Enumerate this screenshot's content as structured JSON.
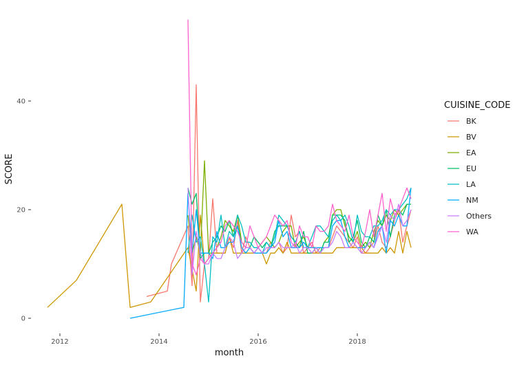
{
  "chart_data": {
    "type": "line",
    "xlabel": "month",
    "ylabel": "SCORE",
    "x_ticks": [
      "2012",
      "2014",
      "2016",
      "2018"
    ],
    "y_ticks": [
      "0",
      "20",
      "40"
    ],
    "xlim": [
      "2011-10",
      "2019-02"
    ],
    "ylim": [
      0,
      55
    ],
    "grid": false,
    "legend": {
      "title": "CUISINE_CODE",
      "position": "right"
    },
    "x": [
      "2014-08",
      "2014-09",
      "2014-10",
      "2014-11",
      "2014-12",
      "2015-01",
      "2015-02",
      "2015-03",
      "2015-04",
      "2015-05",
      "2015-06",
      "2015-07",
      "2015-08",
      "2015-09",
      "2015-10",
      "2015-11",
      "2015-12",
      "2016-01",
      "2016-02",
      "2016-03",
      "2016-04",
      "2016-05",
      "2016-06",
      "2016-07",
      "2016-08",
      "2016-09",
      "2016-10",
      "2016-11",
      "2016-12",
      "2017-01",
      "2017-02",
      "2017-03",
      "2017-04",
      "2017-05",
      "2017-06",
      "2017-07",
      "2017-08",
      "2017-09",
      "2017-10",
      "2017-11",
      "2017-12",
      "2018-01",
      "2018-02",
      "2018-03",
      "2018-04",
      "2018-05",
      "2018-06",
      "2018-07",
      "2018-08",
      "2018-09",
      "2018-10",
      "2018-11",
      "2018-12",
      "2019-01",
      "2019-02"
    ],
    "series": [
      {
        "name": "BK",
        "color": "#F8766D",
        "early_points": [
          [
            "2013-10",
            4
          ],
          [
            "2014-03",
            5
          ],
          [
            "2014-04",
            10
          ]
        ],
        "values": [
          17,
          6,
          43,
          3,
          10,
          11,
          22,
          12,
          12,
          12,
          15,
          13,
          18,
          12,
          15,
          13,
          12,
          13,
          12,
          12,
          14,
          13,
          14,
          12,
          13,
          19,
          15,
          16,
          12,
          13,
          14,
          12,
          13,
          13,
          13,
          15,
          17,
          16,
          15,
          14,
          13,
          15,
          12,
          12,
          13,
          14,
          17,
          14,
          13,
          15,
          18,
          20,
          14,
          17,
          20
        ]
      },
      {
        "name": "BV",
        "color": "#CD9600",
        "early_points": [
          [
            "2011-10",
            2
          ],
          [
            "2012-05",
            7
          ],
          [
            "2013-04",
            21
          ],
          [
            "2013-06",
            2
          ],
          [
            "2013-11",
            3
          ]
        ],
        "values": [
          13,
          9,
          5,
          19,
          10,
          11,
          12,
          12,
          12,
          12,
          15,
          12,
          12,
          12,
          12,
          12,
          12,
          12,
          12,
          10,
          12,
          12,
          13,
          12,
          14,
          12,
          12,
          12,
          12,
          12,
          12,
          12,
          12,
          12,
          12,
          12,
          13,
          13,
          13,
          13,
          13,
          13,
          13,
          12,
          12,
          12,
          12,
          13,
          12,
          13,
          12,
          16,
          12,
          16,
          13
        ]
      },
      {
        "name": "EA",
        "color": "#7CAE00",
        "early_points": [],
        "values": [
          19,
          12,
          15,
          12,
          29,
          12,
          12,
          13,
          15,
          18,
          17,
          16,
          19,
          14,
          13,
          13,
          12,
          13,
          14,
          15,
          14,
          13,
          14,
          16,
          17,
          17,
          13,
          14,
          15,
          13,
          13,
          13,
          12,
          14,
          15,
          19,
          20,
          20,
          17,
          15,
          14,
          16,
          13,
          14,
          13,
          16,
          18,
          17,
          19,
          18,
          20,
          19,
          20,
          21,
          21
        ]
      },
      {
        "name": "EU",
        "color": "#00BE67",
        "early_points": [],
        "values": [
          24,
          21,
          23,
          11,
          12,
          12,
          14,
          15,
          17,
          16,
          18,
          15,
          17,
          14,
          13,
          13,
          15,
          14,
          13,
          14,
          13,
          16,
          17,
          17,
          17,
          15,
          14,
          13,
          16,
          12,
          12,
          13,
          12,
          14,
          14,
          19,
          19,
          19,
          18,
          14,
          15,
          18,
          14,
          13,
          15,
          14,
          19,
          17,
          20,
          15,
          19,
          20,
          19,
          21,
          21
        ]
      },
      {
        "name": "LA",
        "color": "#00BFC4",
        "early_points": [],
        "values": [
          12,
          19,
          14,
          15,
          10,
          3,
          15,
          14,
          19,
          13,
          16,
          15,
          19,
          17,
          14,
          14,
          13,
          13,
          12,
          14,
          13,
          15,
          19,
          18,
          17,
          15,
          14,
          16,
          13,
          13,
          15,
          17,
          17,
          16,
          15,
          18,
          19,
          18,
          19,
          17,
          14,
          19,
          16,
          15,
          15,
          17,
          17,
          18,
          20,
          19,
          20,
          20,
          21,
          22,
          24
        ]
      },
      {
        "name": "NM",
        "color": "#00A9FF",
        "early_points": [
          [
            "2013-06",
            0
          ],
          [
            "2014-07",
            2
          ]
        ],
        "values": [
          23,
          12,
          20,
          12,
          12,
          12,
          11,
          16,
          13,
          13,
          14,
          14,
          17,
          13,
          12,
          13,
          12,
          12,
          12,
          12,
          13,
          14,
          18,
          15,
          16,
          13,
          13,
          13,
          14,
          13,
          13,
          13,
          13,
          13,
          13,
          17,
          18,
          18,
          15,
          13,
          14,
          13,
          13,
          13,
          14,
          13,
          16,
          17,
          12,
          18,
          17,
          19,
          17,
          17,
          24
        ]
      },
      {
        "name": "Others",
        "color": "#C77CFF",
        "early_points": [],
        "values": [
          24,
          8,
          16,
          12,
          10,
          10,
          12,
          11,
          11,
          13,
          15,
          14,
          11,
          12,
          13,
          13,
          12,
          13,
          12,
          13,
          13,
          13,
          14,
          13,
          13,
          13,
          14,
          12,
          13,
          13,
          12,
          13,
          12,
          13,
          13,
          14,
          16,
          15,
          13,
          13,
          14,
          13,
          12,
          13,
          14,
          13,
          15,
          17,
          14,
          19,
          18,
          21,
          17,
          18,
          20
        ]
      },
      {
        "name": "WA",
        "color": "#FF61CC",
        "early_points": [],
        "values": [
          55,
          10,
          8,
          11,
          10,
          11,
          12,
          13,
          14,
          17,
          18,
          17,
          16,
          14,
          13,
          17,
          15,
          13,
          14,
          15,
          17,
          19,
          18,
          17,
          18,
          14,
          13,
          17,
          15,
          15,
          13,
          17,
          16,
          16,
          17,
          21,
          18,
          17,
          16,
          19,
          15,
          14,
          13,
          16,
          20,
          15,
          19,
          23,
          16,
          22,
          19,
          20,
          22,
          24,
          22
        ]
      }
    ]
  }
}
